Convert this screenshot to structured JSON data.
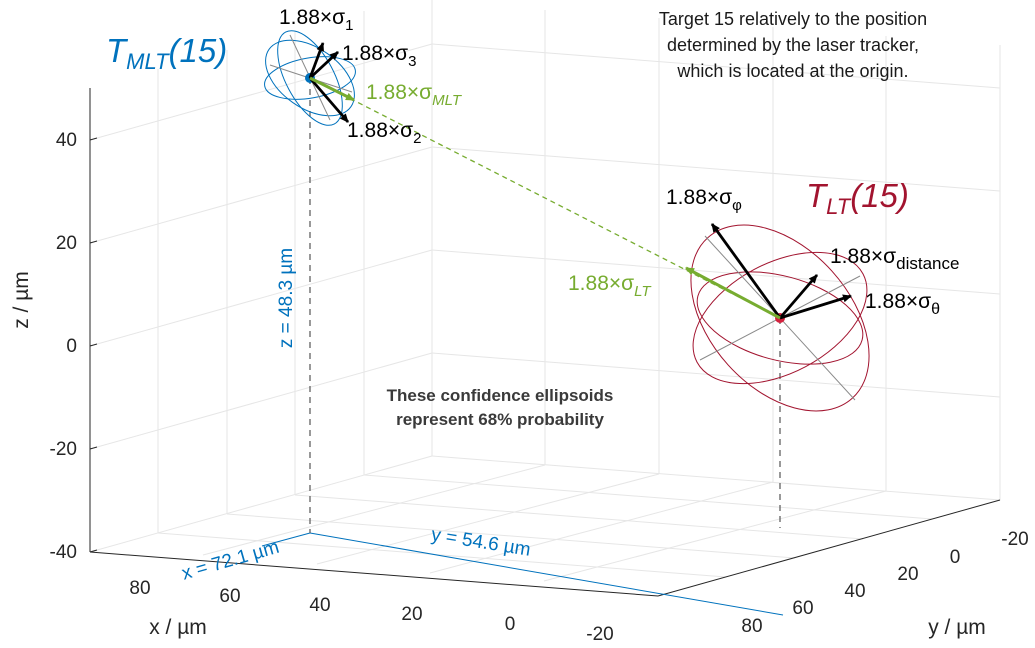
{
  "axes": {
    "x_label": "x / µm",
    "y_label": "y / µm",
    "z_label": "z / µm",
    "x_ticks": [
      "80",
      "60",
      "40",
      "20",
      "0",
      "-20"
    ],
    "y_ticks": [
      "-20",
      "0",
      "20",
      "40",
      "60",
      "80"
    ],
    "z_ticks": [
      "40",
      "20",
      "0",
      "-20",
      "-40"
    ]
  },
  "annotations": {
    "mlt_title": "T",
    "mlt_title_sub": "MLT",
    "mlt_title_suffix": "(15)",
    "lt_title": "T",
    "lt_title_sub": "LT",
    "lt_title_suffix": "(15)",
    "note_lines": [
      "Target 15 relatively to the position",
      "determined by the laser tracker,",
      "which is located at the origin."
    ],
    "confidence_lines": [
      "These confidence ellipsoids",
      "represent 68% probability"
    ],
    "z_dim": "z = 48.3 µm",
    "x_dim": "x = 72.1 µm",
    "y_dim": "y = 54.6 µm",
    "sigma_prefix": "1.88×σ",
    "mlt_sigma_1": "1",
    "mlt_sigma_2": "2",
    "mlt_sigma_3": "3",
    "mlt_sigma_mlt": "MLT",
    "lt_sigma_phi": "φ",
    "lt_sigma_distance": "distance",
    "lt_sigma_theta": "θ",
    "lt_sigma_lt": "LT"
  },
  "colors": {
    "mlt_blue": "#0072BD",
    "lt_red": "#A2142F",
    "sigma_green": "#77AC30",
    "arrow_black": "#000000",
    "axis": "#262626",
    "grid": "#e6e6e6"
  },
  "chart_data": {
    "type": "scatter",
    "dimensions": 3,
    "points": [
      {
        "name": "T_MLT(15)",
        "x": 72.1,
        "y": 54.6,
        "z": 48.3
      },
      {
        "name": "T_LT(15)",
        "x": 0,
        "y": 0,
        "z": 0
      }
    ],
    "xlabel": "x / µm",
    "ylabel": "y / µm",
    "zlabel": "z / µm",
    "xlim": [
      -20,
      80
    ],
    "ylim": [
      -20,
      80
    ],
    "zlim": [
      -40,
      40
    ],
    "grid": true
  }
}
